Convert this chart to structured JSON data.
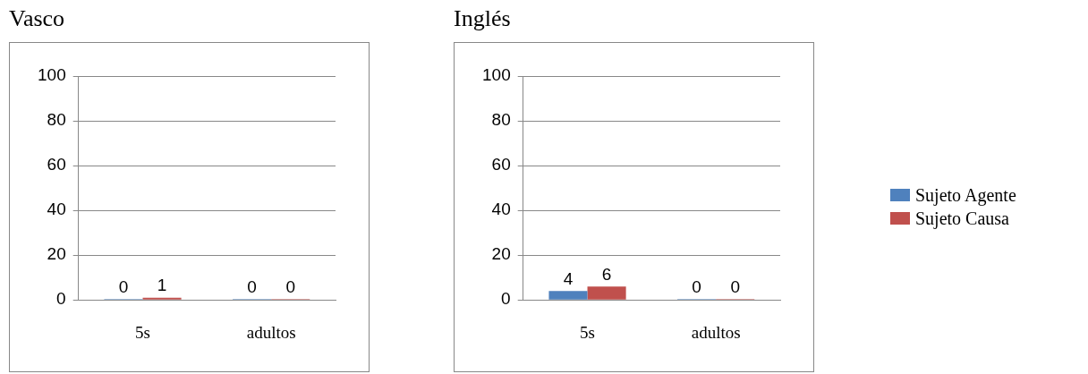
{
  "chart_data": [
    {
      "type": "bar",
      "title": "Vasco",
      "categories": [
        "5s",
        "adultos"
      ],
      "series": [
        {
          "color": "#4f81bd",
          "values": [
            0,
            0
          ]
        },
        {
          "color": "#c0504d",
          "values": [
            1,
            0
          ]
        }
      ],
      "ylim": [
        0,
        100
      ],
      "yticks": [
        0,
        20,
        40,
        60,
        80,
        100
      ],
      "grid": "y",
      "legend": false,
      "data_labels": true
    },
    {
      "type": "bar",
      "title": "Inglés",
      "categories": [
        "5s",
        "adultos"
      ],
      "series": [
        {
          "name": "Sujeto Agente",
          "color": "#4f81bd",
          "values": [
            4,
            0
          ]
        },
        {
          "name": "Sujeto Causa",
          "color": "#c0504d",
          "values": [
            6,
            0
          ]
        }
      ],
      "ylim": [
        0,
        100
      ],
      "yticks": [
        0,
        20,
        40,
        60,
        80,
        100
      ],
      "grid": "y",
      "legend": "right",
      "data_labels": true
    }
  ]
}
